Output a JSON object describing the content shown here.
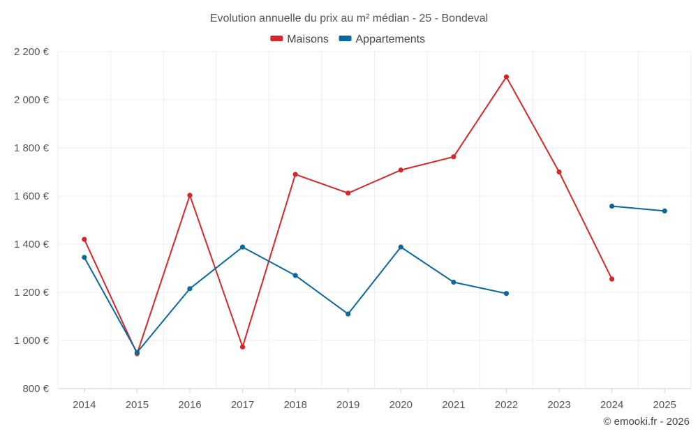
{
  "chart_data": {
    "type": "line",
    "title": "Evolution annuelle du prix au m² médian - 25 - Bondeval",
    "categories": [
      "2014",
      "2015",
      "2016",
      "2017",
      "2018",
      "2019",
      "2020",
      "2021",
      "2022",
      "2023",
      "2024",
      "2025"
    ],
    "series": [
      {
        "name": "Maisons",
        "color": "#d62728",
        "values": [
          1420,
          945,
          1603,
          973,
          1690,
          1612,
          1708,
          1763,
          2095,
          1700,
          1255,
          null
        ]
      },
      {
        "name": "Appartements",
        "color": "#0868a0",
        "values": [
          1345,
          950,
          1215,
          1388,
          1270,
          1110,
          1388,
          1242,
          1195,
          null,
          1558,
          1538
        ]
      }
    ],
    "ylim": [
      800,
      2200
    ],
    "yticks": [
      800,
      1000,
      1200,
      1400,
      1600,
      1800,
      2000,
      2200
    ],
    "ytick_labels": [
      "800 €",
      "1 000 €",
      "1 200 €",
      "1 400 €",
      "1 600 €",
      "1 800 €",
      "2 000 €",
      "2 200 €"
    ],
    "xlabel": "",
    "ylabel": "",
    "grid": true,
    "legend_position": "top-center"
  },
  "credit": "© emooki.fr - 2026"
}
